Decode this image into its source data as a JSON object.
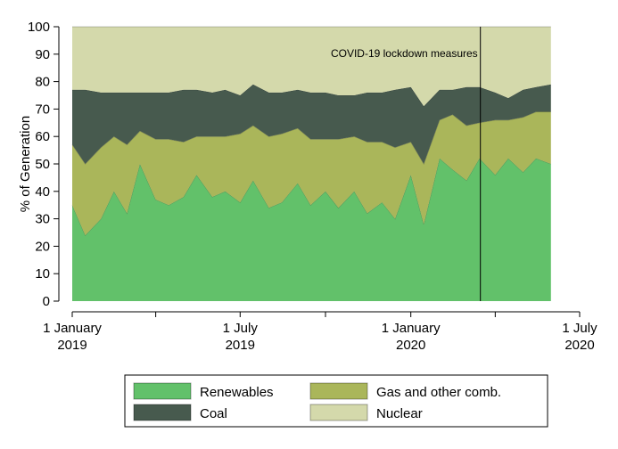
{
  "chart_data": {
    "type": "area",
    "stacked": true,
    "ylabel": "% of Generation",
    "xlabel": "",
    "ylim": [
      0,
      100
    ],
    "yticks": [
      0,
      10,
      20,
      30,
      40,
      50,
      60,
      70,
      80,
      90,
      100
    ],
    "xlim": [
      "2019-01-01",
      "2020-07-01"
    ],
    "data_range": [
      "2019-01-01",
      "2020-05-31"
    ],
    "xticks": [
      {
        "date": "2019-01-01",
        "label": [
          "1 January",
          "2019"
        ]
      },
      {
        "date": "2019-04-01",
        "label": [
          "",
          ""
        ]
      },
      {
        "date": "2019-07-01",
        "label": [
          "1 July",
          "2019"
        ]
      },
      {
        "date": "2019-10-01",
        "label": [
          "",
          ""
        ]
      },
      {
        "date": "2020-01-01",
        "label": [
          "1 January",
          "2020"
        ]
      },
      {
        "date": "2020-04-01",
        "label": [
          "",
          ""
        ]
      },
      {
        "date": "2020-07-01",
        "label": [
          "1 July",
          "2020"
        ]
      }
    ],
    "annotation": {
      "date": "2020-03-16",
      "text": "COVID-19 lockdown measures"
    },
    "dates": [
      "2019-01-01",
      "2019-01-15",
      "2019-02-01",
      "2019-02-15",
      "2019-03-01",
      "2019-03-15",
      "2019-04-01",
      "2019-04-15",
      "2019-05-01",
      "2019-05-15",
      "2019-06-01",
      "2019-06-15",
      "2019-07-01",
      "2019-07-15",
      "2019-08-01",
      "2019-08-15",
      "2019-09-01",
      "2019-09-15",
      "2019-10-01",
      "2019-10-15",
      "2019-11-01",
      "2019-11-15",
      "2019-12-01",
      "2019-12-15",
      "2020-01-01",
      "2020-01-15",
      "2020-02-01",
      "2020-02-15",
      "2020-03-01",
      "2020-03-15",
      "2020-04-01",
      "2020-04-15",
      "2020-05-01",
      "2020-05-15",
      "2020-05-31"
    ],
    "series": [
      {
        "name": "Renewables",
        "color": "#62c16a",
        "values": [
          35,
          24,
          30,
          40,
          32,
          50,
          37,
          35,
          38,
          46,
          38,
          40,
          36,
          44,
          34,
          36,
          43,
          35,
          40,
          34,
          40,
          32,
          36,
          30,
          46,
          28,
          52,
          48,
          44,
          52,
          46,
          52,
          47,
          52,
          50
        ]
      },
      {
        "name": "Gas and other comb.",
        "color": "#aab65a",
        "values": [
          22,
          26,
          26,
          20,
          25,
          12,
          22,
          24,
          20,
          14,
          22,
          20,
          25,
          20,
          26,
          25,
          20,
          24,
          19,
          25,
          20,
          26,
          22,
          26,
          12,
          22,
          14,
          20,
          20,
          13,
          20,
          14,
          20,
          17,
          19
        ]
      },
      {
        "name": "Coal",
        "color": "#475a4e",
        "values": [
          20,
          27,
          20,
          16,
          19,
          14,
          17,
          17,
          19,
          17,
          16,
          17,
          14,
          15,
          16,
          15,
          14,
          17,
          17,
          16,
          15,
          18,
          18,
          21,
          20,
          21,
          11,
          9,
          14,
          13,
          10,
          8,
          10,
          9,
          10
        ]
      },
      {
        "name": "Nuclear",
        "color": "#d4d9ab",
        "values": [
          23,
          23,
          24,
          24,
          24,
          24,
          24,
          24,
          23,
          23,
          24,
          23,
          25,
          21,
          24,
          24,
          23,
          24,
          24,
          25,
          25,
          24,
          24,
          23,
          22,
          29,
          23,
          23,
          22,
          22,
          24,
          26,
          23,
          22,
          21
        ]
      }
    ],
    "legend": {
      "placement": "bottom",
      "columns": 2,
      "order": [
        "Renewables",
        "Gas and other comb.",
        "Coal",
        "Nuclear"
      ]
    }
  }
}
